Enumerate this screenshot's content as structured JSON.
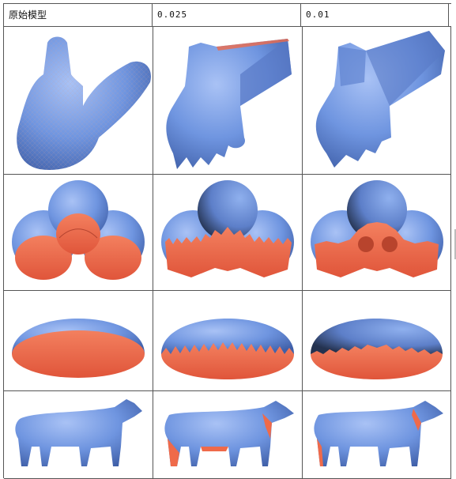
{
  "table": {
    "headers": [
      "原始模型",
      "0.025",
      "0.01"
    ]
  },
  "colors": {
    "outer_surface": "#6f95e0",
    "inner_surface": "#ef6a4a",
    "grid_lines": "#555555"
  },
  "rows": [
    {
      "model": "bunny-icon"
    },
    {
      "model": "three-spheres-icon"
    },
    {
      "model": "hemisphere-icon"
    },
    {
      "model": "cow-icon"
    }
  ]
}
